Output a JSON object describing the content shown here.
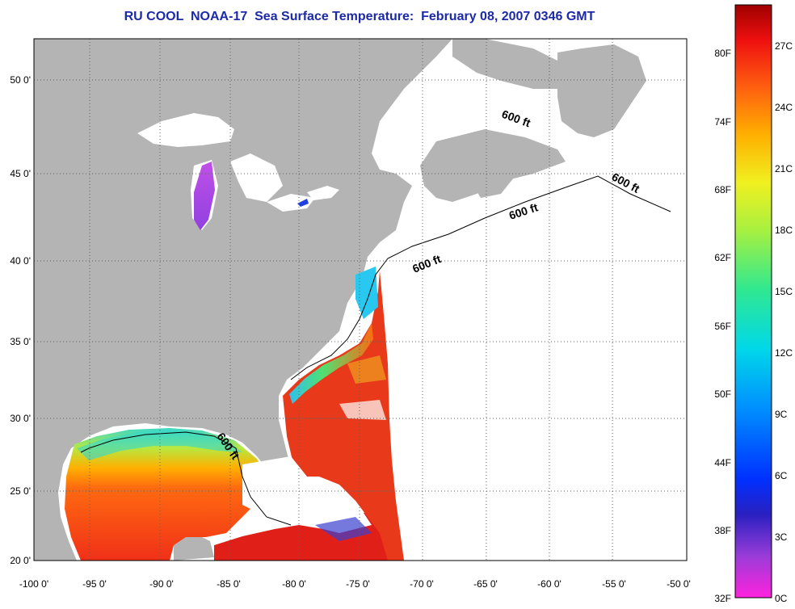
{
  "title": "RU COOL  NOAA-17  Sea Surface Temperature:  February 08, 2007 0346 GMT",
  "map": {
    "lon_labels": [
      "-100 0'",
      "-95 0'",
      "-90 0'",
      "-85 0'",
      "-80 0'",
      "-75 0'",
      "-70 0'",
      "-65 0'",
      "-60 0'",
      "-55 0'",
      "-50 0'"
    ],
    "lat_labels": [
      "50 0'",
      "45 0'",
      "40 0'",
      "35 0'",
      "30 0'",
      "25 0'",
      "20 0'"
    ],
    "contour_label": "600 ft",
    "land_color": "#b4b4b4",
    "nodata_color": "#ffffff"
  },
  "colorbar": {
    "fahrenheit_labels": [
      "80F",
      "74F",
      "68F",
      "62F",
      "56F",
      "50F",
      "44F",
      "38F",
      "32F"
    ],
    "celsius_labels": [
      "27C",
      "24C",
      "21C",
      "18C",
      "15C",
      "12C",
      "9C",
      "6C",
      "3C",
      "0C"
    ]
  }
}
